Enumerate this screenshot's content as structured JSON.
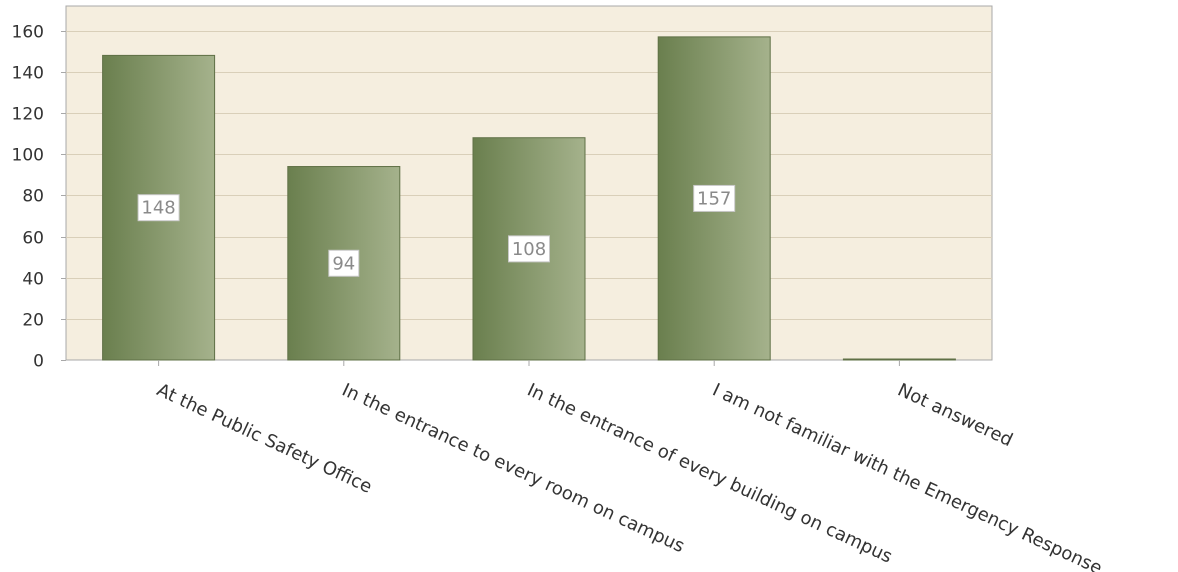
{
  "chart_data": {
    "type": "bar",
    "title": "",
    "xlabel": "",
    "ylabel": "",
    "categories": [
      "At the Public Safety Office",
      "In the entrance to every room on campus",
      "In the entrance of every building on campus",
      "I am not familiar with the Emergency Response ...",
      "Not answered"
    ],
    "values": [
      148,
      94,
      108,
      157,
      0
    ],
    "data_labels": [
      "148",
      "94",
      "108",
      "157",
      ""
    ],
    "ylim": [
      0,
      172
    ],
    "yticks": [
      0,
      20,
      40,
      60,
      80,
      100,
      120,
      140,
      160
    ],
    "grid": true,
    "legend": "none",
    "colors": {
      "plot_background": "#f5eedf",
      "gridline": "#d9cfb9",
      "bar_dark": "#6a7f4e",
      "bar_light": "#a5b28c",
      "bar_border": "#5f7046",
      "axis": "#a8a8a8"
    }
  }
}
